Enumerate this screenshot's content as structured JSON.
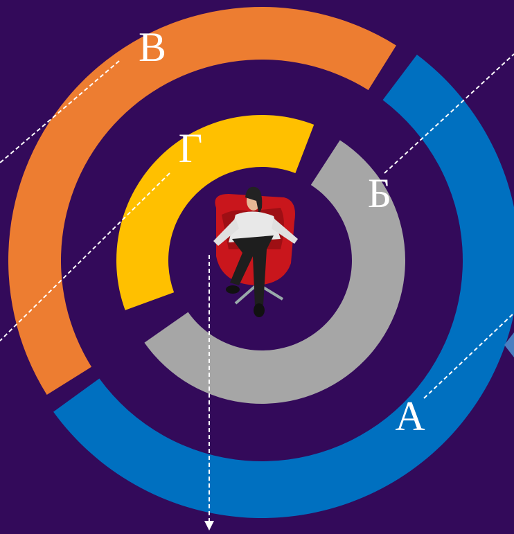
{
  "labels": {
    "a": "А",
    "b": "Б",
    "v": "В",
    "g": "Г"
  }
}
